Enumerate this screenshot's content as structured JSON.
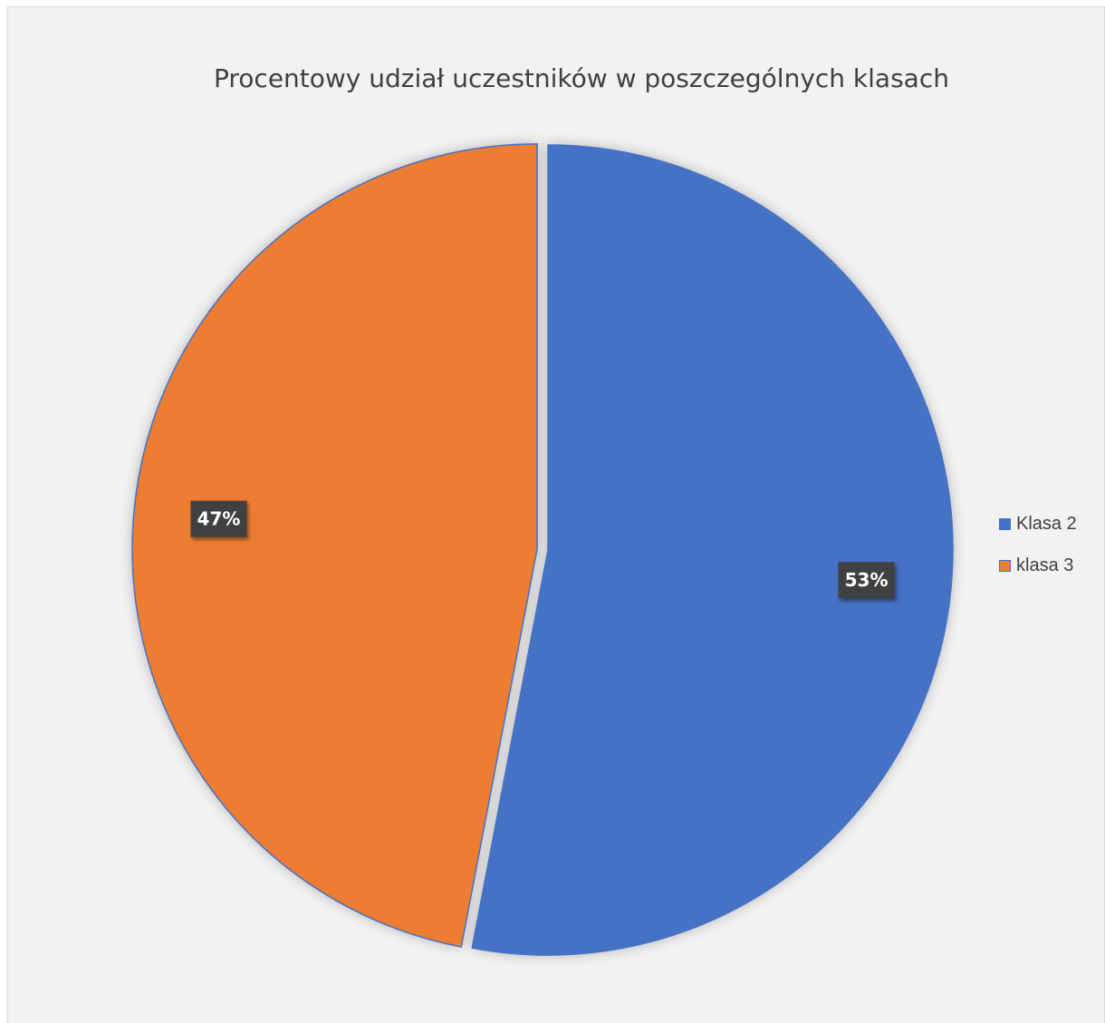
{
  "chart_data": {
    "type": "pie",
    "title": "Procentowy udział uczestników w poszczególnych klasach",
    "slices": [
      {
        "name": "Klasa 2",
        "value": 53,
        "label": "53%",
        "color": "#4472c4"
      },
      {
        "name": "klasa 3",
        "value": 47,
        "label": "47%",
        "color": "#ed7d31"
      }
    ],
    "legend_position": "right",
    "exploded_slice": "klasa 3"
  }
}
